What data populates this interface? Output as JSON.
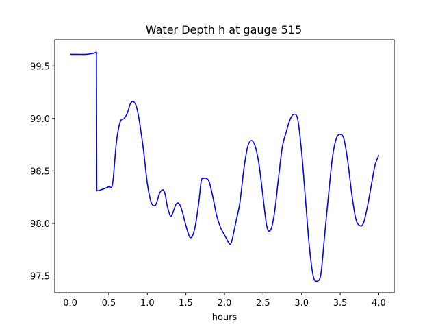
{
  "chart_data": {
    "type": "line",
    "title": "Water Depth h at gauge 515",
    "xlabel": "hours",
    "ylabel": "",
    "xlim": [
      -0.2,
      4.2
    ],
    "ylim": [
      97.34,
      99.75
    ],
    "grid": false,
    "legend": "none",
    "x_ticks": [
      {
        "value": 0.0,
        "label": "0.0"
      },
      {
        "value": 0.5,
        "label": "0.5"
      },
      {
        "value": 1.0,
        "label": "1.0"
      },
      {
        "value": 1.5,
        "label": "1.5"
      },
      {
        "value": 2.0,
        "label": "2.0"
      },
      {
        "value": 2.5,
        "label": "2.5"
      },
      {
        "value": 3.0,
        "label": "3.0"
      },
      {
        "value": 3.5,
        "label": "3.5"
      },
      {
        "value": 4.0,
        "label": "4.0"
      }
    ],
    "y_ticks": [
      {
        "value": 97.5,
        "label": "97.5"
      },
      {
        "value": 98.0,
        "label": "98.0"
      },
      {
        "value": 98.5,
        "label": "98.5"
      },
      {
        "value": 99.0,
        "label": "99.0"
      },
      {
        "value": 99.5,
        "label": "99.5"
      }
    ],
    "series": [
      {
        "color": "#0000ff",
        "x": [
          0.0,
          0.1,
          0.2,
          0.3,
          0.34,
          0.345,
          0.4,
          0.5,
          0.55,
          0.6,
          0.65,
          0.7,
          0.74,
          0.78,
          0.82,
          0.86,
          0.9,
          0.95,
          1.0,
          1.05,
          1.1,
          1.13,
          1.16,
          1.2,
          1.23,
          1.26,
          1.3,
          1.33,
          1.37,
          1.41,
          1.45,
          1.5,
          1.55,
          1.59,
          1.63,
          1.67,
          1.7,
          1.73,
          1.76,
          1.8,
          1.85,
          1.9,
          1.95,
          2.0,
          2.03,
          2.06,
          2.09,
          2.15,
          2.2,
          2.25,
          2.3,
          2.35,
          2.4,
          2.45,
          2.5,
          2.55,
          2.6,
          2.65,
          2.7,
          2.75,
          2.8,
          2.85,
          2.9,
          2.95,
          3.0,
          3.05,
          3.1,
          3.15,
          3.2,
          3.25,
          3.3,
          3.35,
          3.4,
          3.45,
          3.5,
          3.55,
          3.6,
          3.65,
          3.7,
          3.75,
          3.8,
          3.85,
          3.9,
          3.95,
          4.0
        ],
        "y": [
          99.61,
          99.61,
          99.61,
          99.62,
          99.63,
          98.31,
          98.32,
          98.35,
          98.38,
          98.78,
          98.97,
          99.0,
          99.05,
          99.14,
          99.16,
          99.11,
          98.96,
          98.7,
          98.38,
          98.2,
          98.17,
          98.22,
          98.29,
          98.32,
          98.28,
          98.16,
          98.07,
          98.1,
          98.18,
          98.19,
          98.12,
          97.98,
          97.87,
          97.89,
          98.01,
          98.22,
          98.41,
          98.43,
          98.43,
          98.4,
          98.25,
          98.07,
          97.96,
          97.89,
          97.85,
          97.81,
          97.82,
          98.02,
          98.2,
          98.51,
          98.73,
          98.79,
          98.73,
          98.55,
          98.25,
          97.97,
          97.94,
          98.11,
          98.43,
          98.73,
          98.87,
          98.99,
          99.04,
          98.99,
          98.68,
          98.23,
          97.78,
          97.5,
          97.45,
          97.52,
          97.9,
          98.28,
          98.63,
          98.81,
          98.85,
          98.8,
          98.58,
          98.28,
          98.05,
          97.98,
          98.0,
          98.15,
          98.35,
          98.55,
          98.65
        ]
      }
    ]
  }
}
